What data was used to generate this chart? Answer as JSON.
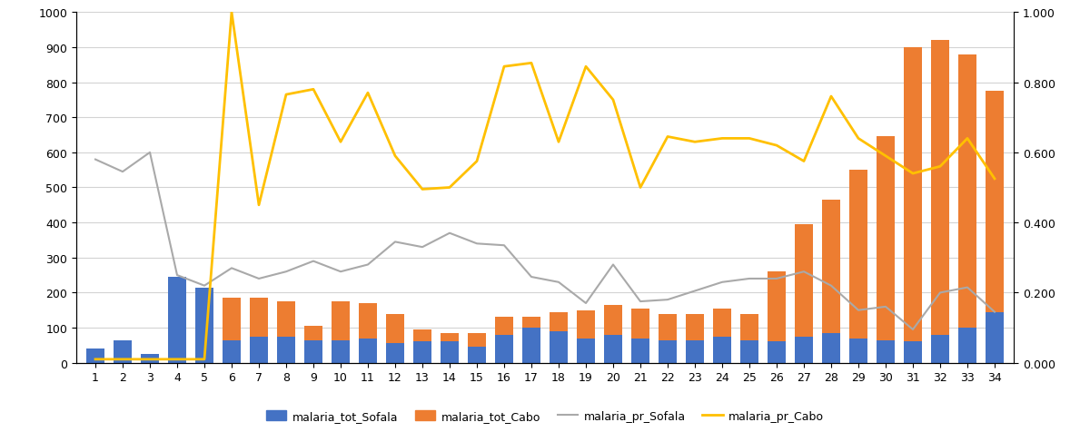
{
  "x": [
    1,
    2,
    3,
    4,
    5,
    6,
    7,
    8,
    9,
    10,
    11,
    12,
    13,
    14,
    15,
    16,
    17,
    18,
    19,
    20,
    21,
    22,
    23,
    24,
    25,
    26,
    27,
    28,
    29,
    30,
    31,
    32,
    33,
    34
  ],
  "malaria_tot_Sofala": [
    40,
    65,
    25,
    245,
    215,
    65,
    75,
    75,
    65,
    65,
    70,
    55,
    60,
    60,
    45,
    80,
    100,
    90,
    70,
    80,
    70,
    65,
    65,
    75,
    65,
    60,
    75,
    85,
    70,
    65,
    60,
    80,
    100,
    145
  ],
  "malaria_tot_Cabo": [
    0,
    0,
    0,
    0,
    0,
    120,
    110,
    100,
    40,
    110,
    100,
    85,
    35,
    25,
    40,
    50,
    30,
    55,
    80,
    85,
    85,
    75,
    75,
    80,
    75,
    200,
    320,
    380,
    480,
    580,
    840,
    840,
    780,
    630
  ],
  "malaria_pr_Sofala": [
    0.58,
    0.545,
    0.6,
    0.25,
    0.22,
    0.27,
    0.24,
    0.26,
    0.29,
    0.26,
    0.28,
    0.345,
    0.33,
    0.37,
    0.34,
    0.335,
    0.245,
    0.23,
    0.17,
    0.28,
    0.175,
    0.18,
    0.205,
    0.23,
    0.24,
    0.24,
    0.26,
    0.22,
    0.15,
    0.16,
    0.095,
    0.2,
    0.215,
    0.145
  ],
  "malaria_pr_Cabo": [
    0.01,
    0.01,
    0.01,
    0.01,
    0.01,
    1.0,
    0.45,
    0.765,
    0.78,
    0.63,
    0.77,
    0.59,
    0.495,
    0.5,
    0.575,
    0.845,
    0.855,
    0.63,
    0.845,
    0.75,
    0.5,
    0.645,
    0.63,
    0.64,
    0.64,
    0.62,
    0.575,
    0.76,
    0.64,
    0.59,
    0.54,
    0.56,
    0.64,
    0.525
  ],
  "bar_color_sofala": "#4472C4",
  "bar_color_cabo": "#ED7D31",
  "line_color_sofala": "#A9A9A9",
  "line_color_cabo": "#FFC000",
  "left_ylim": [
    0,
    1000
  ],
  "right_ylim": [
    0.0,
    1.0
  ],
  "left_yticks": [
    0,
    100,
    200,
    300,
    400,
    500,
    600,
    700,
    800,
    900,
    1000
  ],
  "right_yticks": [
    0.0,
    0.2,
    0.4,
    0.6,
    0.8,
    1.0
  ],
  "legend_labels": [
    "malaria_tot_Sofala",
    "malaria_tot_Cabo",
    "malaria_pr_Sofala",
    "malaria_pr_Cabo"
  ],
  "background_color": "#FFFFFF",
  "grid_color": "#D3D3D3"
}
